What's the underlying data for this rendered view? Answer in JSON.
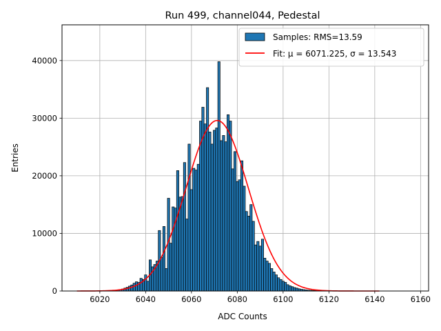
{
  "chart_data": {
    "type": "bar",
    "title": "Run 499, channel044, Pedestal",
    "xlabel": "ADC Counts",
    "ylabel": "Entries",
    "xlim": [
      6003.5,
      6163.5
    ],
    "ylim": [
      0,
      46200
    ],
    "xticks": [
      6020,
      6040,
      6060,
      6080,
      6100,
      6120,
      6140,
      6160
    ],
    "yticks": [
      0,
      10000,
      20000,
      30000,
      40000
    ],
    "grid": true,
    "legend_position": "top-right",
    "bar_color": "#1f77b4",
    "fit_color": "#ff0000",
    "histogram": {
      "name": "Samples: RMS=13.59",
      "bin_width": 1,
      "x": [
        6025,
        6026,
        6027,
        6028,
        6029,
        6030,
        6031,
        6032,
        6033,
        6034,
        6035,
        6036,
        6037,
        6038,
        6039,
        6040,
        6041,
        6042,
        6043,
        6044,
        6045,
        6046,
        6047,
        6048,
        6049,
        6050,
        6051,
        6052,
        6053,
        6054,
        6055,
        6056,
        6057,
        6058,
        6059,
        6060,
        6061,
        6062,
        6063,
        6064,
        6065,
        6066,
        6067,
        6068,
        6069,
        6070,
        6071,
        6072,
        6073,
        6074,
        6075,
        6076,
        6077,
        6078,
        6079,
        6080,
        6081,
        6082,
        6083,
        6084,
        6085,
        6086,
        6087,
        6088,
        6089,
        6090,
        6091,
        6092,
        6093,
        6094,
        6095,
        6096,
        6097,
        6098,
        6099,
        6100,
        6101,
        6102,
        6103,
        6104,
        6105,
        6106,
        6107,
        6108,
        6109,
        6110,
        6111,
        6112,
        6113,
        6114,
        6115,
        6116,
        6117,
        6118,
        6119,
        6120,
        6121,
        6122
      ],
      "values": [
        50,
        80,
        120,
        180,
        260,
        350,
        500,
        650,
        850,
        1050,
        1350,
        1600,
        1500,
        2200,
        2000,
        2800,
        1700,
        5400,
        4200,
        4600,
        5200,
        10500,
        5800,
        11200,
        3900,
        16100,
        8300,
        14600,
        14400,
        20900,
        16300,
        16400,
        22300,
        12500,
        25500,
        17600,
        21300,
        21000,
        22000,
        29500,
        31900,
        29000,
        35300,
        27600,
        25500,
        27900,
        28300,
        39800,
        26100,
        27000,
        25900,
        30600,
        29500,
        21200,
        24200,
        19000,
        19300,
        22600,
        18200,
        13800,
        13000,
        15000,
        12100,
        8000,
        8600,
        7800,
        9000,
        5700,
        5200,
        4800,
        3900,
        3300,
        2800,
        2300,
        2000,
        1700,
        1500,
        1100,
        900,
        750,
        600,
        500,
        380,
        300,
        240,
        190,
        150,
        120,
        90,
        70,
        55,
        40,
        30,
        22,
        15,
        10,
        6,
        3
      ]
    },
    "fit": {
      "name": "Fit: μ = 6071.225, σ = 13.543",
      "mu": 6071.225,
      "sigma": 13.543,
      "amplitude": 29600,
      "x_range": [
        6010,
        6142
      ]
    }
  }
}
